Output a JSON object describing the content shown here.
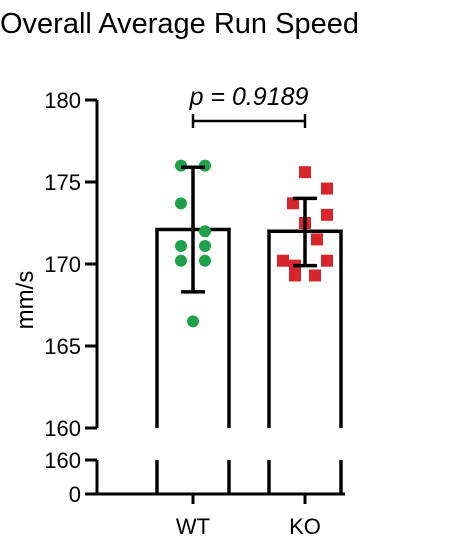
{
  "chart_data": {
    "type": "bar",
    "title": "Overall Average Run Speed",
    "ylabel": "mm/s",
    "xlabel": "",
    "categories": [
      "WT",
      "KO"
    ],
    "ylim": [
      160,
      180
    ],
    "ylim_lower_segment": [
      0,
      160
    ],
    "y_axis_break": true,
    "yticks_upper": [
      "160",
      "165",
      "170",
      "175",
      "180"
    ],
    "yticks_lower": [
      "0",
      "160"
    ],
    "grid": false,
    "error_bars": "SD",
    "series": [
      {
        "category": "WT",
        "mean": 172.1,
        "error_low": 168.3,
        "error_high": 175.9,
        "points": [
          176.0,
          176.0,
          173.7,
          172.0,
          171.1,
          171.1,
          170.2,
          170.2,
          166.5
        ],
        "marker": "circle",
        "color": "#1fa04a"
      },
      {
        "category": "KO",
        "mean": 172.0,
        "error_low": 169.9,
        "error_high": 174.0,
        "points": [
          175.6,
          174.6,
          173.7,
          173.0,
          172.5,
          171.5,
          170.2,
          170.2,
          169.9,
          169.3,
          169.3
        ],
        "marker": "square",
        "color": "#d8262d"
      }
    ],
    "annotations": [
      {
        "text": "p = 0.9189",
        "between": [
          "WT",
          "KO"
        ]
      }
    ]
  }
}
